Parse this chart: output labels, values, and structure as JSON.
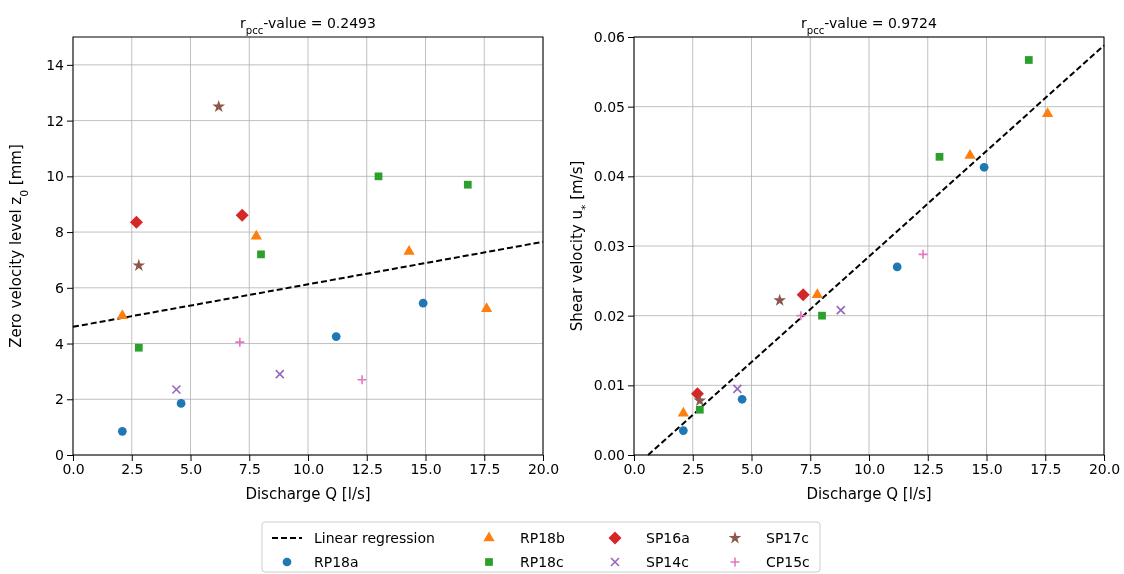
{
  "chart_data": [
    {
      "type": "scatter",
      "title": "r$_{pcc}$-value = 0.2493",
      "xlabel": "Discharge Q [l/s]",
      "ylabel": "Zero velocity level z$_{0}$ [mm]",
      "xlim": [
        0,
        20
      ],
      "ylim": [
        0,
        15
      ],
      "xticks": [
        {
          "value": 0,
          "label": "0.0"
        },
        {
          "value": 2.5,
          "label": "2.5"
        },
        {
          "value": 5,
          "label": "5.0"
        },
        {
          "value": 7.5,
          "label": "7.5"
        },
        {
          "value": 10,
          "label": "10.0"
        },
        {
          "value": 12.5,
          "label": "12.5"
        },
        {
          "value": 15,
          "label": "15.0"
        },
        {
          "value": 17.5,
          "label": "17.5"
        },
        {
          "value": 20,
          "label": "20.0"
        }
      ],
      "yticks": [
        0,
        2,
        4,
        6,
        8,
        10,
        12,
        14
      ],
      "grid": true,
      "legend": "bottom",
      "series": [
        {
          "name": "Linear regression",
          "type": "line",
          "color": "#000000",
          "line_style": "dashed",
          "x": [
            0,
            20
          ],
          "values": [
            4.6,
            7.65
          ]
        },
        {
          "name": "RP18a",
          "color": "#1f77b4",
          "marker": "circle",
          "x": [
            2.1,
            4.6,
            11.2,
            14.9
          ],
          "values": [
            0.85,
            1.85,
            4.25,
            5.45
          ]
        },
        {
          "name": "RP18b",
          "color": "#ff7f0e",
          "marker": "triangle",
          "x": [
            2.1,
            7.8,
            14.3,
            17.6
          ],
          "values": [
            5.0,
            7.85,
            7.3,
            5.25
          ]
        },
        {
          "name": "RP18c",
          "color": "#2ca02c",
          "marker": "square",
          "x": [
            2.8,
            8.0,
            13.0,
            16.8
          ],
          "values": [
            3.85,
            7.2,
            10.0,
            9.7
          ]
        },
        {
          "name": "SP16a",
          "color": "#d62728",
          "marker": "diamond",
          "x": [
            2.7,
            7.2
          ],
          "values": [
            8.35,
            8.6
          ]
        },
        {
          "name": "SP14c",
          "color": "#9467bd",
          "marker": "cross",
          "x": [
            4.4,
            8.8
          ],
          "values": [
            2.35,
            2.9
          ]
        },
        {
          "name": "SP17c",
          "color": "#8c564b",
          "marker": "star",
          "x": [
            2.8,
            6.2
          ],
          "values": [
            6.8,
            12.5
          ]
        },
        {
          "name": "CP15c",
          "color": "#e377c2",
          "marker": "plus",
          "x": [
            7.1,
            12.3
          ],
          "values": [
            4.05,
            2.7
          ]
        }
      ]
    },
    {
      "type": "scatter",
      "title": "r$_{pcc}$-value = 0.9724",
      "xlabel": "Discharge Q [l/s]",
      "ylabel": "Shear velocity u$_{*}$ [m/s]",
      "xlim": [
        0,
        20
      ],
      "ylim": [
        0,
        0.06
      ],
      "xticks": [
        {
          "value": 0,
          "label": "0.0"
        },
        {
          "value": 2.5,
          "label": "2.5"
        },
        {
          "value": 5,
          "label": "5.0"
        },
        {
          "value": 7.5,
          "label": "7.5"
        },
        {
          "value": 10,
          "label": "10.0"
        },
        {
          "value": 12.5,
          "label": "12.5"
        },
        {
          "value": 15,
          "label": "15.0"
        },
        {
          "value": 17.5,
          "label": "17.5"
        },
        {
          "value": 20,
          "label": "20.0"
        }
      ],
      "yticks": [
        {
          "value": 0,
          "label": "0.00"
        },
        {
          "value": 0.01,
          "label": "0.01"
        },
        {
          "value": 0.02,
          "label": "0.02"
        },
        {
          "value": 0.03,
          "label": "0.03"
        },
        {
          "value": 0.04,
          "label": "0.04"
        },
        {
          "value": 0.05,
          "label": "0.05"
        },
        {
          "value": 0.06,
          "label": "0.06"
        }
      ],
      "grid": true,
      "series": [
        {
          "type": "line",
          "color": "#000000",
          "line_style": "dashed",
          "x": [
            0.6,
            20
          ],
          "values": [
            0,
            0.0588
          ]
        },
        {
          "color": "#1f77b4",
          "marker": "circle",
          "x": [
            2.1,
            4.6,
            11.2,
            14.9
          ],
          "values": [
            0.0035,
            0.008,
            0.027,
            0.0413
          ]
        },
        {
          "color": "#ff7f0e",
          "marker": "triangle",
          "x": [
            2.1,
            7.8,
            14.3,
            17.6
          ],
          "values": [
            0.006,
            0.023,
            0.043,
            0.049
          ]
        },
        {
          "color": "#2ca02c",
          "marker": "square",
          "x": [
            2.8,
            8.0,
            13.0,
            16.8
          ],
          "values": [
            0.0065,
            0.02,
            0.0428,
            0.0567
          ]
        },
        {
          "color": "#d62728",
          "marker": "diamond",
          "x": [
            2.7,
            7.2
          ],
          "values": [
            0.0088,
            0.023
          ]
        },
        {
          "color": "#9467bd",
          "marker": "cross",
          "x": [
            4.4,
            8.8
          ],
          "values": [
            0.0095,
            0.0208
          ]
        },
        {
          "color": "#8c564b",
          "marker": "star",
          "x": [
            2.8,
            6.2
          ],
          "values": [
            0.0078,
            0.0222
          ]
        },
        {
          "color": "#e377c2",
          "marker": "plus",
          "x": [
            7.1,
            12.3
          ],
          "values": [
            0.02,
            0.0288
          ]
        }
      ]
    }
  ]
}
